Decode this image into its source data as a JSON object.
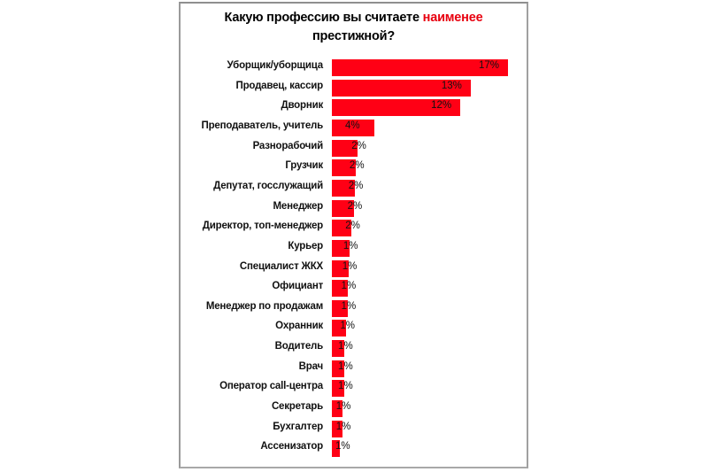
{
  "title": {
    "part1": "Какую профессию вы считаете ",
    "highlight": "наименее",
    "part2": "престижной?"
  },
  "colors": {
    "bar": "#ff0015",
    "highlight": "#e8000f",
    "frame": "#9a9a9a"
  },
  "chart_data": {
    "type": "bar",
    "orientation": "horizontal",
    "title": "Какую профессию вы считаете наименее престижной?",
    "xlabel": "",
    "ylabel": "",
    "grid": false,
    "legend": null,
    "unit": "%",
    "categories": [
      "Уборщик/уборщица",
      "Продавец, кассир",
      "Дворник",
      "Преподаватель, учитель",
      "Разнорабочий",
      "Грузчик",
      "Депутат, госслужащий",
      "Менеджер",
      "Директор, топ-менеджер",
      "Курьер",
      "Специалист ЖКХ",
      "Официант",
      "Менеджер по продажам",
      "Охранник",
      "Водитель",
      "Врач",
      "Оператор call-центра",
      "Секретарь",
      "Бухгалтер",
      "Ассенизатор"
    ],
    "values": [
      17,
      13,
      12,
      4,
      2,
      2,
      2,
      2,
      2,
      1,
      1,
      1,
      1,
      1,
      1,
      1,
      1,
      1,
      1,
      1
    ],
    "labels": [
      "17%",
      "13%",
      "12%",
      "4%",
      "2%",
      "2%",
      "2%",
      "2%",
      "2%",
      "1%",
      "1%",
      "1%",
      "1%",
      "1%",
      "1%",
      "1%",
      "1%",
      "1%",
      "1%",
      "1%"
    ],
    "approx_bar_values": [
      17.0,
      13.4,
      12.4,
      4.1,
      2.5,
      2.3,
      2.2,
      2.1,
      1.9,
      1.7,
      1.6,
      1.5,
      1.5,
      1.4,
      1.2,
      1.2,
      1.2,
      1.0,
      1.0,
      0.8
    ]
  }
}
